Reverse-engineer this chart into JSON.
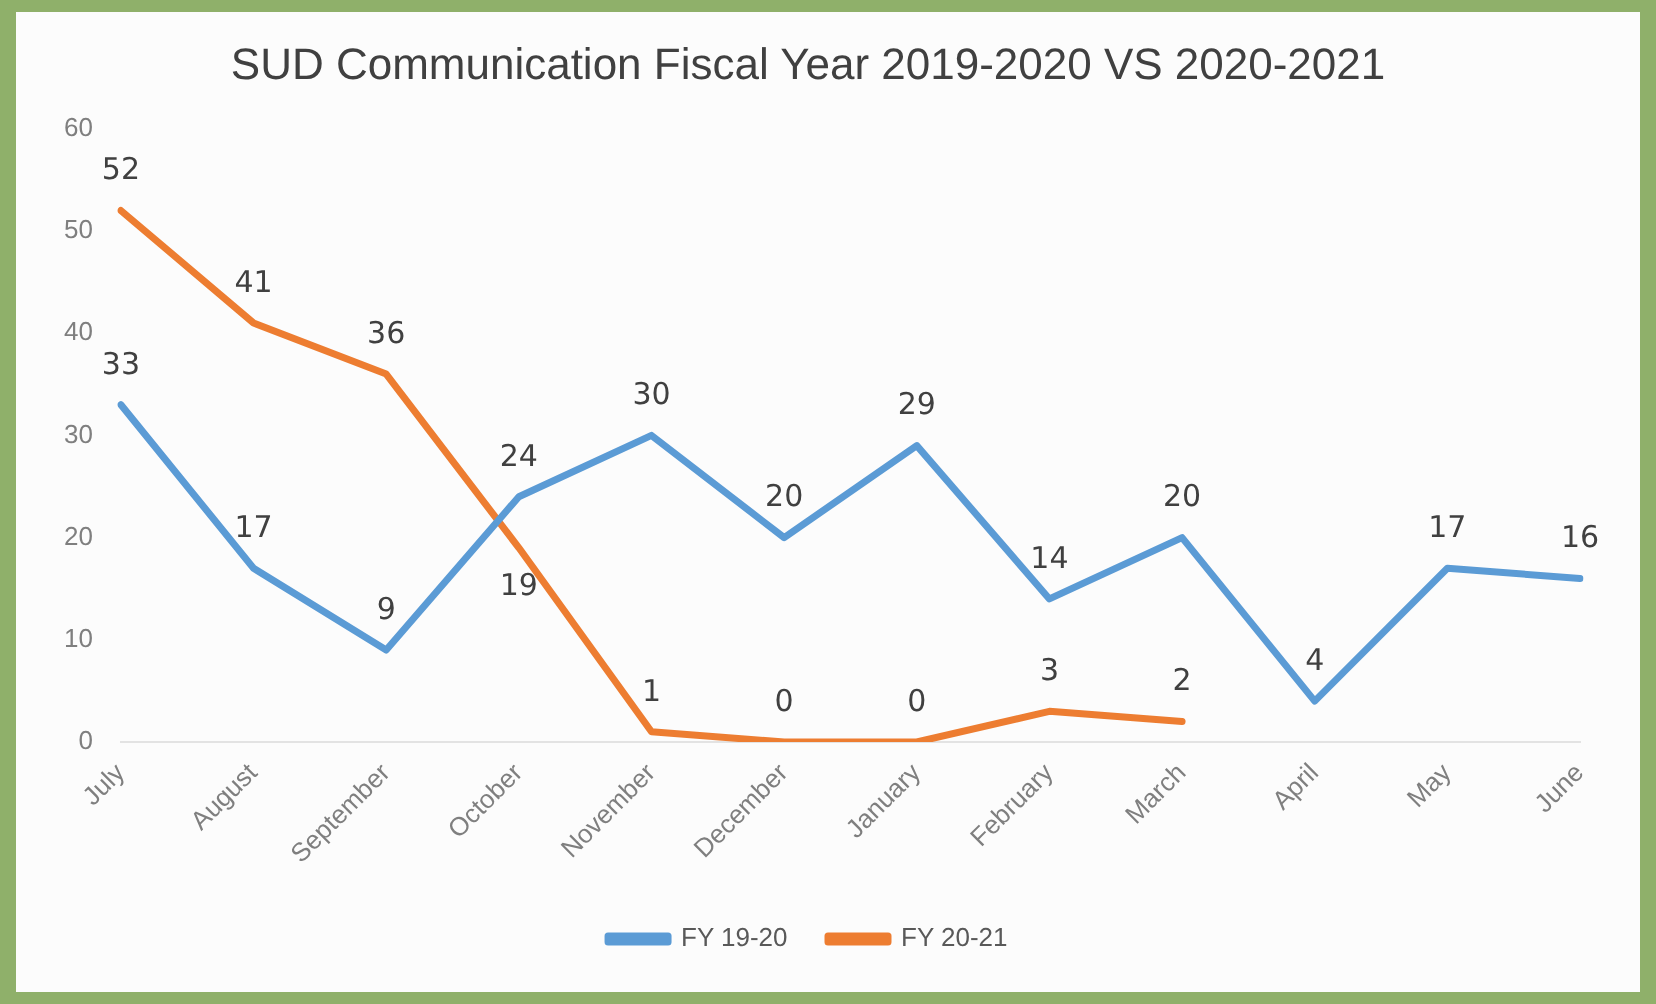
{
  "chart_data": {
    "type": "line",
    "title": "SUD Communication Fiscal Year 2019-2020 VS 2020-2021",
    "categories": [
      "July",
      "August",
      "September",
      "October",
      "November",
      "December",
      "January",
      "February",
      "March",
      "April",
      "May",
      "June"
    ],
    "series": [
      {
        "name": "FY 19-20",
        "color": "#5b9bd5",
        "values": [
          33,
          17,
          9,
          24,
          30,
          20,
          29,
          14,
          20,
          4,
          17,
          16
        ]
      },
      {
        "name": "FY 20-21",
        "color": "#ed7d31",
        "values": [
          52,
          41,
          36,
          19,
          1,
          0,
          0,
          3,
          2,
          null,
          null,
          null
        ]
      }
    ],
    "ylim": [
      0,
      60
    ],
    "yticks": [
      0,
      10,
      20,
      30,
      40,
      50,
      60
    ],
    "grid": false,
    "legend": "bottom",
    "data_labels": true,
    "marker": "none",
    "line_style": "solid"
  }
}
